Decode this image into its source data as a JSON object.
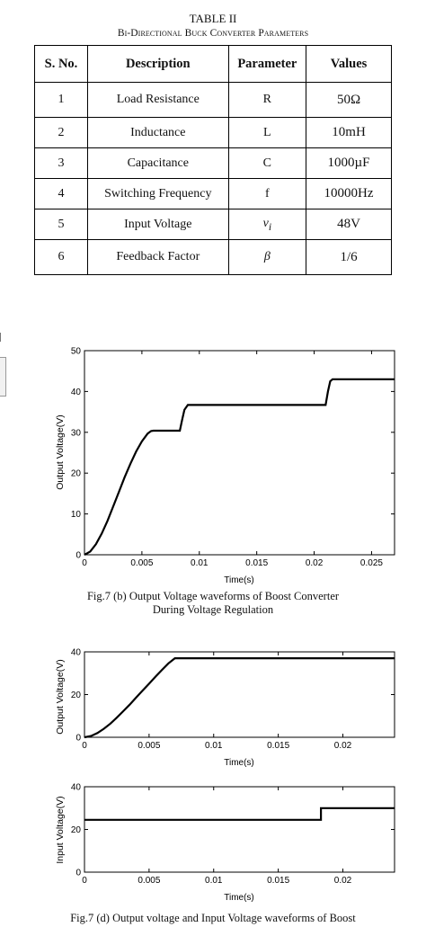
{
  "table": {
    "title": "TABLE II",
    "subtitle": "Bi-Directional Buck Converter Parameters",
    "headers": [
      "S. No.",
      "Description",
      "Parameter",
      "Values"
    ],
    "rows": [
      {
        "sno": "1",
        "desc": "Load Resistance",
        "param": "R",
        "value": "50Ω"
      },
      {
        "sno": "2",
        "desc": "Inductance",
        "param": "L",
        "value": "10mH"
      },
      {
        "sno": "3",
        "desc": "Capacitance",
        "param": "C",
        "value": "1000µF"
      },
      {
        "sno": "4",
        "desc": "Switching Frequency",
        "param": "f",
        "value": "10000Hz"
      },
      {
        "sno": "5",
        "desc": "Input Voltage",
        "param": "v",
        "param_sub": "i",
        "value": "48V"
      },
      {
        "sno": "6",
        "desc": "Feedback Factor",
        "param": "β",
        "value": "1/6"
      }
    ]
  },
  "captions": {
    "fig7b_line1": "Fig.7 (b) Output Voltage waveforms of Boost Converter",
    "fig7b_line2": "During Voltage Regulation",
    "fig7d_line1": "Fig.7 (d) Output voltage and Input Voltage waveforms of Boost"
  },
  "chart_data": [
    {
      "type": "line",
      "xlabel": "Time(s)",
      "ylabel": "Output Voltage(V)",
      "xlim": [
        0,
        0.027
      ],
      "ylim": [
        0,
        50
      ],
      "xticks": [
        0,
        0.005,
        0.01,
        0.015,
        0.02,
        0.025
      ],
      "xtick_labels": [
        "0",
        "0.005",
        "0.01",
        "0.015",
        "0.02",
        "0.025"
      ],
      "yticks": [
        0,
        10,
        20,
        30,
        40,
        50
      ],
      "ytick_labels": [
        "0",
        "10",
        "20",
        "30",
        "40",
        "50"
      ],
      "series": [
        {
          "x": [
            0,
            0.0005,
            0.001,
            0.0015,
            0.002,
            0.0025,
            0.003,
            0.0035,
            0.004,
            0.0045,
            0.005,
            0.0055,
            0.0058,
            0.006,
            0.0083,
            0.0085,
            0.0087,
            0.009,
            0.021,
            0.0212,
            0.0214,
            0.0216,
            0.027
          ],
          "y": [
            0,
            0.8,
            2.6,
            5.2,
            8.3,
            11.8,
            15.4,
            19.0,
            22.3,
            25.3,
            27.8,
            29.7,
            30.3,
            30.4,
            30.4,
            33.0,
            35.5,
            36.7,
            36.7,
            40.0,
            42.5,
            43.0,
            43.0
          ]
        }
      ]
    },
    {
      "type": "line",
      "xlabel": "Time(s)",
      "ylabel": "Output Voltage(V)",
      "xlim": [
        0,
        0.024
      ],
      "ylim": [
        0,
        40
      ],
      "xticks": [
        0,
        0.005,
        0.01,
        0.015,
        0.02
      ],
      "xtick_labels": [
        "0",
        "0.005",
        "0.01",
        "0.015",
        "0.02"
      ],
      "yticks": [
        0,
        20,
        40
      ],
      "ytick_labels": [
        "0",
        "20",
        "40"
      ],
      "series": [
        {
          "x": [
            0,
            0.0005,
            0.001,
            0.0015,
            0.002,
            0.0025,
            0.003,
            0.0035,
            0.004,
            0.0045,
            0.005,
            0.0055,
            0.006,
            0.0065,
            0.007,
            0.024
          ],
          "y": [
            0,
            0.6,
            2.0,
            4.0,
            6.4,
            9.2,
            12.2,
            15.3,
            18.6,
            21.9,
            25.1,
            28.4,
            31.6,
            34.6,
            37.0,
            37.0
          ]
        }
      ]
    },
    {
      "type": "line",
      "xlabel": "Time(s)",
      "ylabel": "Input Voltage(V)",
      "xlim": [
        0,
        0.024
      ],
      "ylim": [
        0,
        40
      ],
      "xticks": [
        0,
        0.005,
        0.01,
        0.015,
        0.02
      ],
      "xtick_labels": [
        "0",
        "0.005",
        "0.01",
        "0.015",
        "0.02"
      ],
      "yticks": [
        0,
        20,
        40
      ],
      "ytick_labels": [
        "0",
        "20",
        "40"
      ],
      "series": [
        {
          "x": [
            0,
            0.0183,
            0.0183,
            0.024
          ],
          "y": [
            24.5,
            24.5,
            30,
            30
          ]
        }
      ]
    }
  ]
}
